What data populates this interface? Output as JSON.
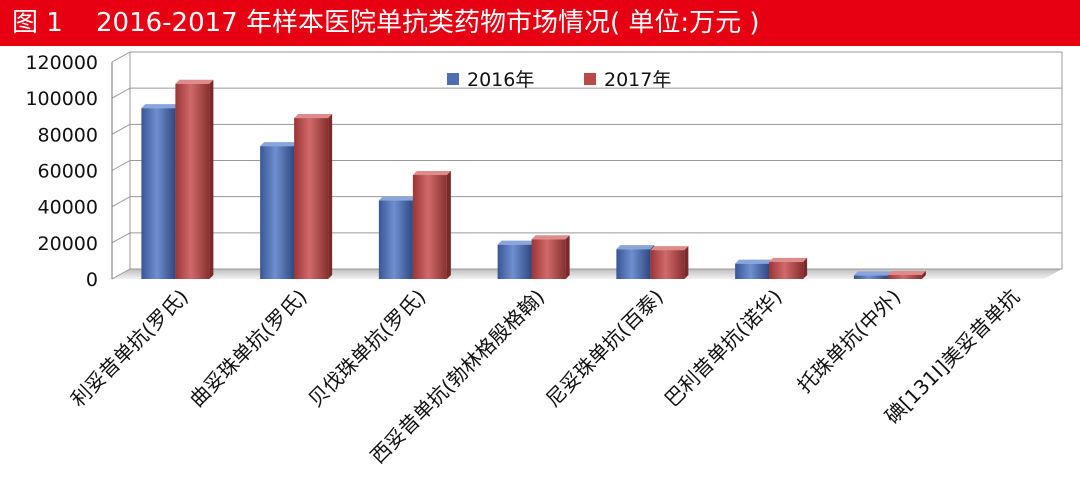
{
  "header": {
    "figure_label": "图 1",
    "title": "2016-2017 年样本医院单抗类药物市场情况( 单位:万元 )"
  },
  "colors": {
    "title_bar": "#e60012",
    "series_2016": "#4f6fb0",
    "series_2017": "#b84a4a"
  },
  "chart_data": {
    "type": "bar",
    "title": "2016-2017 年样本医院单抗类药物市场情况( 单位:万元 )",
    "xlabel": "",
    "ylabel": "",
    "ylim": [
      0,
      120000
    ],
    "yticks": [
      "0",
      "20000",
      "40000",
      "60000",
      "80000",
      "100000",
      "120000"
    ],
    "grid": true,
    "legend_position": "top-center",
    "categories": [
      "利妥昔单抗(罗氏)",
      "曲妥珠单抗(罗氏)",
      "贝伐珠单抗(罗氏)",
      "西妥昔单抗(勃林格殷格翰)",
      "尼妥珠单抗(百泰)",
      "巴利昔单抗(诺华)",
      "托珠单抗(中外)",
      "碘[131I]美妥昔单抗"
    ],
    "series": [
      {
        "name": "2016年",
        "values": [
          94500,
          73500,
          43500,
          19000,
          16500,
          8500,
          2000,
          0
        ]
      },
      {
        "name": "2017年",
        "values": [
          108000,
          89000,
          57500,
          22000,
          16000,
          9500,
          2200,
          0
        ]
      }
    ]
  }
}
